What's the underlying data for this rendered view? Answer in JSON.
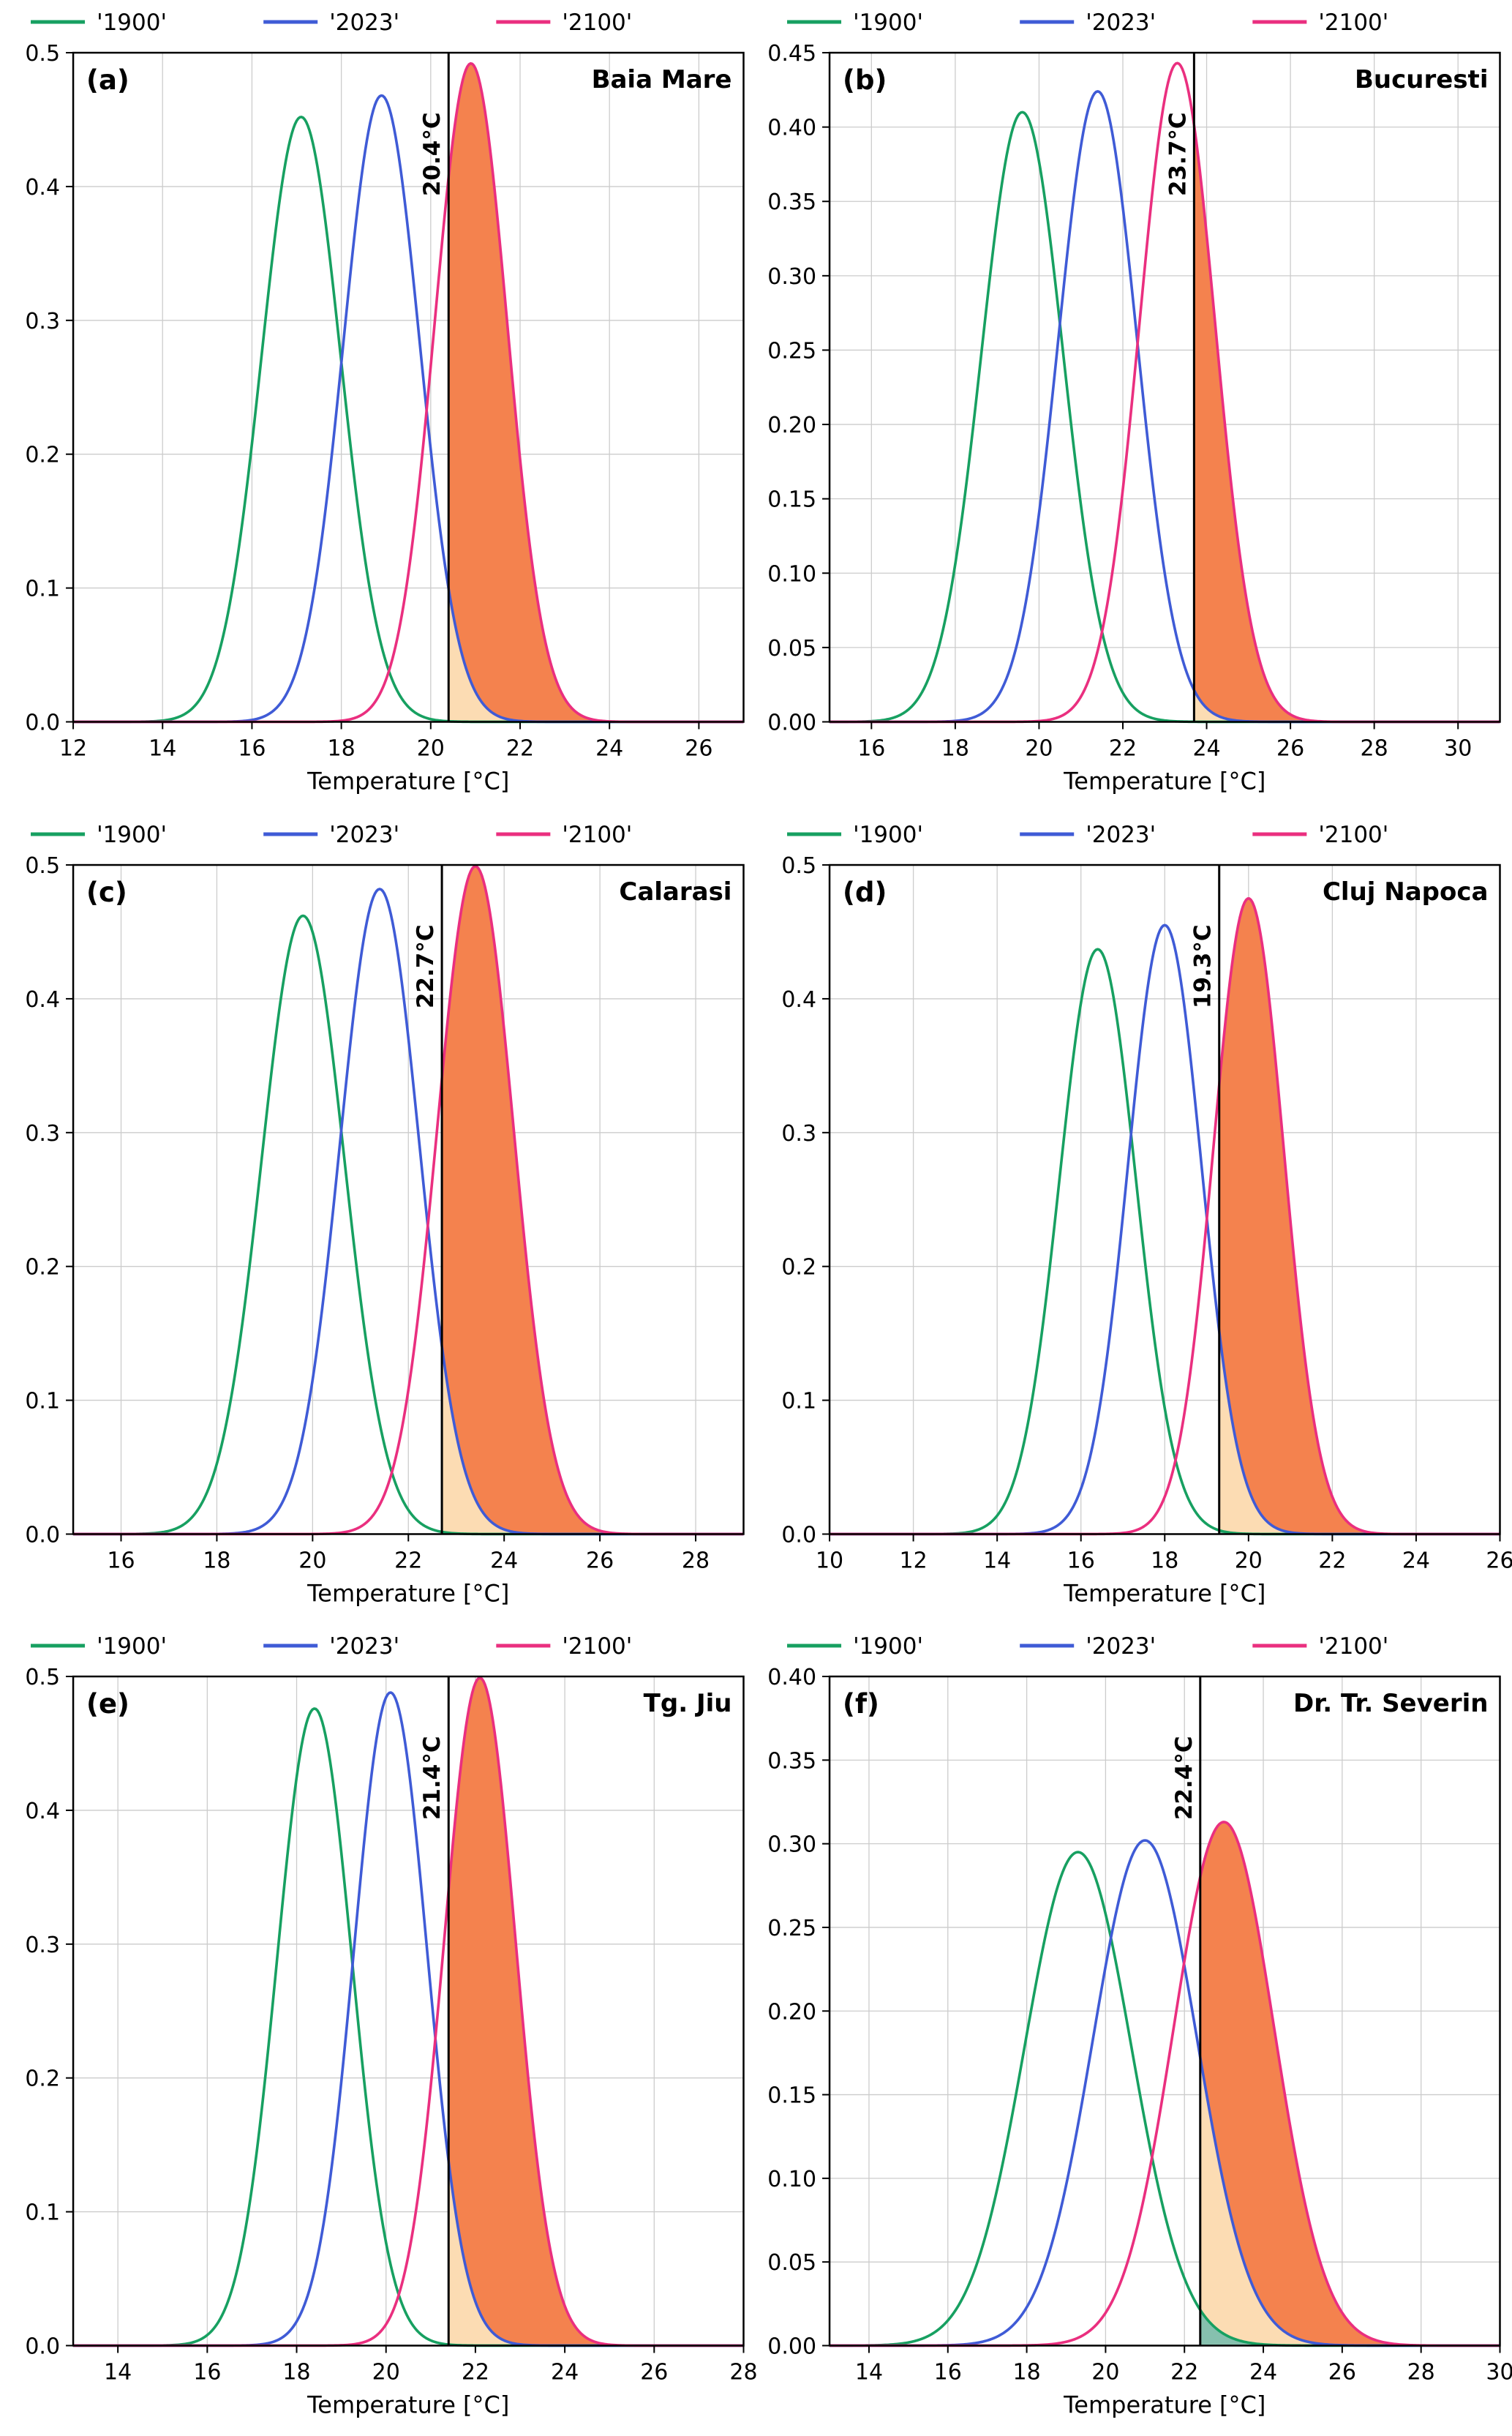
{
  "figure": {
    "background": "#ffffff",
    "xlabel": "Temperature [°C]"
  },
  "style": {
    "series_colors": [
      "#17a061",
      "#3f5bd6",
      "#ea2f7f"
    ],
    "fill_colors": [
      "#86c0ae",
      "#fcdcb3",
      "#f4824e"
    ],
    "threshold_label_color": "#2a71a5",
    "grid_color": "#cccccc",
    "axis_color": "#000000",
    "threshold_line_color": "#000000"
  },
  "chart_data": [
    {
      "type": "area",
      "panel_label": "(a)",
      "title": "Baia Mare",
      "xlabel": "Temperature [°C]",
      "xlim": [
        12,
        27
      ],
      "ylim": [
        0,
        0.5
      ],
      "xticks": [
        12,
        14,
        16,
        18,
        20,
        22,
        24,
        26
      ],
      "xtick_labels": [
        "12",
        "14",
        "16",
        "18",
        "20",
        "22",
        "24",
        "26"
      ],
      "yticks": [
        0,
        0.1,
        0.2,
        0.3,
        0.4,
        0.5
      ],
      "ytick_labels": [
        "0.0",
        "0.1",
        "0.2",
        "0.3",
        "0.4",
        "0.5"
      ],
      "threshold": 20.4,
      "threshold_label": "20.4°C",
      "legend": [
        "'1900'",
        "'2023'",
        "'2100'"
      ],
      "series": [
        {
          "name": "'1900'",
          "mean": 17.1,
          "peak": 0.452
        },
        {
          "name": "'2023'",
          "mean": 18.9,
          "peak": 0.468
        },
        {
          "name": "'2100'",
          "mean": 20.9,
          "peak": 0.492
        }
      ]
    },
    {
      "type": "area",
      "panel_label": "(b)",
      "title": "Bucuresti",
      "xlabel": "Temperature [°C]",
      "xlim": [
        15,
        31
      ],
      "ylim": [
        0,
        0.45
      ],
      "xticks": [
        16,
        18,
        20,
        22,
        24,
        26,
        28,
        30
      ],
      "xtick_labels": [
        "16",
        "18",
        "20",
        "22",
        "24",
        "26",
        "28",
        "30"
      ],
      "yticks": [
        0,
        0.05,
        0.1,
        0.15,
        0.2,
        0.25,
        0.3,
        0.35,
        0.4,
        0.45
      ],
      "ytick_labels": [
        "0.00",
        "0.05",
        "0.10",
        "0.15",
        "0.20",
        "0.25",
        "0.30",
        "0.35",
        "0.40",
        "0.45"
      ],
      "threshold": 23.7,
      "threshold_label": "23.7°C",
      "legend": [
        "'1900'",
        "'2023'",
        "'2100'"
      ],
      "series": [
        {
          "name": "'1900'",
          "mean": 19.6,
          "peak": 0.41
        },
        {
          "name": "'2023'",
          "mean": 21.4,
          "peak": 0.424
        },
        {
          "name": "'2100'",
          "mean": 23.3,
          "peak": 0.443
        }
      ]
    },
    {
      "type": "area",
      "panel_label": "(c)",
      "title": "Calarasi",
      "xlabel": "Temperature [°C]",
      "xlim": [
        15,
        29
      ],
      "ylim": [
        0,
        0.5
      ],
      "xticks": [
        16,
        18,
        20,
        22,
        24,
        26,
        28
      ],
      "xtick_labels": [
        "16",
        "18",
        "20",
        "22",
        "24",
        "26",
        "28"
      ],
      "yticks": [
        0,
        0.1,
        0.2,
        0.3,
        0.4,
        0.5
      ],
      "ytick_labels": [
        "0.0",
        "0.1",
        "0.2",
        "0.3",
        "0.4",
        "0.5"
      ],
      "threshold": 22.7,
      "threshold_label": "22.7°C",
      "legend": [
        "'1900'",
        "'2023'",
        "'2100'"
      ],
      "series": [
        {
          "name": "'1900'",
          "mean": 19.8,
          "peak": 0.462
        },
        {
          "name": "'2023'",
          "mean": 21.4,
          "peak": 0.482
        },
        {
          "name": "'2100'",
          "mean": 23.4,
          "peak": 0.499
        }
      ]
    },
    {
      "type": "area",
      "panel_label": "(d)",
      "title": "Cluj Napoca",
      "xlabel": "Temperature [°C]",
      "xlim": [
        10,
        26
      ],
      "ylim": [
        0,
        0.5
      ],
      "xticks": [
        10,
        12,
        14,
        16,
        18,
        20,
        22,
        24,
        26
      ],
      "xtick_labels": [
        "10",
        "12",
        "14",
        "16",
        "18",
        "20",
        "22",
        "24",
        "26"
      ],
      "yticks": [
        0,
        0.1,
        0.2,
        0.3,
        0.4,
        0.5
      ],
      "ytick_labels": [
        "0.0",
        "0.1",
        "0.2",
        "0.3",
        "0.4",
        "0.5"
      ],
      "threshold": 19.3,
      "threshold_label": "19.3°C",
      "legend": [
        "'1900'",
        "'2023'",
        "'2100'"
      ],
      "series": [
        {
          "name": "'1900'",
          "mean": 16.4,
          "peak": 0.437
        },
        {
          "name": "'2023'",
          "mean": 18.0,
          "peak": 0.455
        },
        {
          "name": "'2100'",
          "mean": 20.0,
          "peak": 0.475
        }
      ]
    },
    {
      "type": "area",
      "panel_label": "(e)",
      "title": "Tg. Jiu",
      "xlabel": "Temperature [°C]",
      "xlim": [
        13,
        28
      ],
      "ylim": [
        0,
        0.5
      ],
      "xticks": [
        14,
        16,
        18,
        20,
        22,
        24,
        26,
        28
      ],
      "xtick_labels": [
        "14",
        "16",
        "18",
        "20",
        "22",
        "24",
        "26",
        "28"
      ],
      "yticks": [
        0,
        0.1,
        0.2,
        0.3,
        0.4,
        0.5
      ],
      "ytick_labels": [
        "0.0",
        "0.1",
        "0.2",
        "0.3",
        "0.4",
        "0.5"
      ],
      "threshold": 21.4,
      "threshold_label": "21.4°C",
      "legend": [
        "'1900'",
        "'2023'",
        "'2100'"
      ],
      "series": [
        {
          "name": "'1900'",
          "mean": 18.4,
          "peak": 0.476
        },
        {
          "name": "'2023'",
          "mean": 20.1,
          "peak": 0.488
        },
        {
          "name": "'2100'",
          "mean": 22.1,
          "peak": 0.499
        }
      ]
    },
    {
      "type": "area",
      "panel_label": "(f)",
      "title": "Dr. Tr. Severin",
      "xlabel": "Temperature [°C]",
      "xlim": [
        13,
        30
      ],
      "ylim": [
        0,
        0.4
      ],
      "xticks": [
        14,
        16,
        18,
        20,
        22,
        24,
        26,
        28,
        30
      ],
      "xtick_labels": [
        "14",
        "16",
        "18",
        "20",
        "22",
        "24",
        "26",
        "28",
        "30"
      ],
      "yticks": [
        0,
        0.05,
        0.1,
        0.15,
        0.2,
        0.25,
        0.3,
        0.35,
        0.4
      ],
      "ytick_labels": [
        "0.00",
        "0.05",
        "0.10",
        "0.15",
        "0.20",
        "0.25",
        "0.30",
        "0.35",
        "0.40"
      ],
      "threshold": 22.4,
      "threshold_label": "22.4°C",
      "legend": [
        "'1900'",
        "'2023'",
        "'2100'"
      ],
      "series": [
        {
          "name": "'1900'",
          "mean": 19.3,
          "peak": 0.295
        },
        {
          "name": "'2023'",
          "mean": 21.0,
          "peak": 0.302
        },
        {
          "name": "'2100'",
          "mean": 23.0,
          "peak": 0.313
        }
      ]
    }
  ]
}
